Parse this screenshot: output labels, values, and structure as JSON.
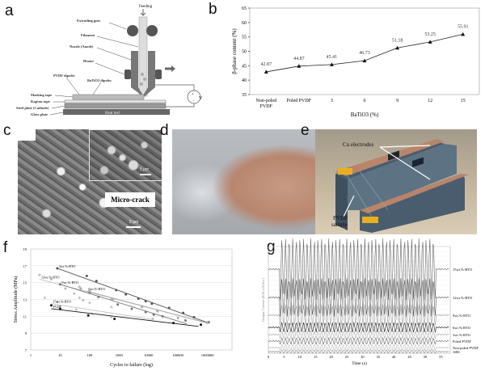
{
  "panels": {
    "a": {
      "label": "a",
      "texts": {
        "feeding": "Feeding",
        "extruding_gear": "Extruding gear",
        "filament": "Filament",
        "nozzle": "Nozzle (Anode)",
        "heater": "Heater",
        "pvdf_dipoles": "PVDF dipoles",
        "batio3_dipoles": "BaTiO3 dipoles",
        "masking_tape": "Masking tape",
        "kapton_tape": "Kapton tape",
        "steel_plate": "Steel plate (Cathode)",
        "glass_plate": "Glass plate",
        "heat_bed": "Heat bed",
        "voltage": "V"
      }
    },
    "b": {
      "label": "b"
    },
    "c": {
      "label": "c",
      "inset_scale": "5 μm",
      "callout": "Micro-crack",
      "scale": "5 μm"
    },
    "d": {
      "label": "d"
    },
    "e": {
      "label": "e",
      "cu_electrodes": "Cu electrodes",
      "pvdf_sample_1": "PVDF",
      "pvdf_sample_2": "sample"
    },
    "f": {
      "label": "f"
    },
    "g": {
      "label": "g"
    }
  },
  "chart_data": [
    {
      "panel": "b",
      "type": "line",
      "categories": [
        "Non-poled PVDF",
        "Poled PVDF",
        "3",
        "6",
        "9",
        "12",
        "15"
      ],
      "values": [
        42.87,
        44.87,
        45.41,
        46.73,
        51.18,
        53.25,
        55.91
      ],
      "data_labels": [
        "42.87",
        "44.87",
        "45.41",
        "46.73",
        "51.18",
        "53.25",
        "55.91"
      ],
      "xlabel": "BaTiO3 (%)",
      "ylabel": "β-phase content (%)",
      "ylim": [
        35,
        65
      ],
      "yticks": [
        "35",
        "40",
        "45",
        "50",
        "55",
        "60",
        "65"
      ],
      "marker": "triangle",
      "grid": false
    },
    {
      "panel": "f",
      "type": "scatter",
      "xscale": "log",
      "xlabel": "Cycles to failure (log)",
      "ylabel": "Stress Amplitude (MPa)",
      "xlim": [
        1,
        1000000
      ],
      "ylim": [
        7,
        19
      ],
      "xticks": [
        "1",
        "10",
        "100",
        "1000",
        "10000",
        "100000",
        "1000000"
      ],
      "yticks": [
        "7",
        "9",
        "11",
        "13",
        "15",
        "17",
        "19"
      ],
      "grid": true,
      "series": [
        {
          "name": "3wt.%-BTO",
          "color": "#555555",
          "points": [
            [
              8,
              16.7
            ],
            [
              80,
              15.8
            ],
            [
              170,
              15.2
            ],
            [
              800,
              14.1
            ],
            [
              1700,
              13.6
            ],
            [
              4500,
              13.1
            ],
            [
              8000,
              12.8
            ],
            [
              13000,
              12.5
            ],
            [
              50000,
              12.0
            ],
            [
              150000,
              11.4
            ],
            [
              350000,
              10.9
            ],
            [
              1100000,
              10.3
            ]
          ],
          "fit": [
            [
              8,
              16.7
            ],
            [
              1100000,
              10.2
            ]
          ]
        },
        {
          "name": "12wt.%-BTO",
          "color": "#bbbbbb",
          "points": [
            [
              2,
              15.9
            ],
            [
              5,
              15.4
            ],
            [
              15,
              14.3
            ],
            [
              30,
              13.7
            ],
            [
              45,
              14.5
            ],
            [
              60,
              12.9
            ],
            [
              550,
              13.1
            ],
            [
              6000,
              12.2
            ],
            [
              20000,
              11.7
            ],
            [
              1000000,
              10.2
            ]
          ],
          "fit": [
            [
              2,
              15.4
            ],
            [
              1000000,
              10.2
            ]
          ]
        },
        {
          "name": "9wt.%-BTO",
          "color": "#777777",
          "points": [
            [
              10,
              14.8
            ],
            [
              100,
              13.8
            ],
            [
              200,
              13.3
            ],
            [
              900,
              12.4
            ],
            [
              2700,
              11.9
            ],
            [
              8000,
              11.5
            ],
            [
              15000,
              11.2
            ],
            [
              30000,
              11.0
            ],
            [
              180000,
              10.5
            ]
          ],
          "fit": [
            [
              10,
              14.8
            ],
            [
              200000,
              10.1
            ]
          ]
        },
        {
          "name": "6wt.%-BTO",
          "color": "#aaaaaa",
          "points": [
            [
              50,
              14.3
            ],
            [
              100,
              14.0
            ],
            [
              600,
              13.0
            ],
            [
              6000,
              12.1
            ],
            [
              20000,
              11.6
            ],
            [
              100000,
              10.8
            ],
            [
              1000000,
              10.3
            ]
          ],
          "fit": [
            [
              80,
              14.0
            ],
            [
              1000000,
              10.2
            ]
          ]
        },
        {
          "name": "15wt.%-BTO",
          "color": "#c4c4c4",
          "points": [
            [
              3,
              13.2
            ],
            [
              8,
              12.7
            ],
            [
              45,
              13.2
            ],
            [
              100,
              12.6
            ],
            [
              35,
              11.8
            ],
            [
              120,
              11.3
            ],
            [
              550,
              12.1
            ],
            [
              550,
              10.9
            ],
            [
              14000,
              10.7
            ]
          ],
          "fit": [
            [
              5,
              12.5
            ],
            [
              15000,
              10.6
            ]
          ]
        },
        {
          "name": "PVDF",
          "color": "#111111",
          "points": [
            [
              5,
              12.3
            ],
            [
              10,
              11.9
            ],
            [
              90,
              11.1
            ],
            [
              700,
              10.7
            ],
            [
              70000,
              10.2
            ],
            [
              600000,
              10.0
            ]
          ],
          "fit": [
            [
              5,
              11.9
            ],
            [
              500000,
              9.8
            ]
          ]
        }
      ]
    },
    {
      "panel": "g",
      "type": "line",
      "xlabel": "Time (s)",
      "ylabel": "Output Current (0.01 nA/div.)",
      "xlim": [
        0,
        58
      ],
      "xticks": [
        "0",
        "5",
        "10",
        "15",
        "20",
        "25",
        "30",
        "35",
        "40",
        "45",
        "50",
        "55"
      ],
      "grid": true,
      "series": [
        {
          "name": "15wt.%-BTO",
          "amplitude": 1.0,
          "color": "#666666"
        },
        {
          "name": "12wt.%-BTO",
          "amplitude": 0.6,
          "color": "#555555"
        },
        {
          "name": "9wt.%-BTO",
          "amplitude": 0.35,
          "color": "#999999"
        },
        {
          "name": "6wt.%-BTO",
          "amplitude": 0.15,
          "color": "#111111"
        },
        {
          "name": "3wt.%-BTO",
          "amplitude": 0.12,
          "color": "#aaaaaa"
        },
        {
          "name": "Poled PVDF",
          "amplitude": 0.08,
          "color": "#666666"
        },
        {
          "name": "Non-poled PVDF",
          "amplitude": 0.08,
          "color": "#bbbbbb"
        },
        {
          "name": "ABS",
          "amplitude": 0.04,
          "color": "#888888"
        }
      ]
    }
  ]
}
